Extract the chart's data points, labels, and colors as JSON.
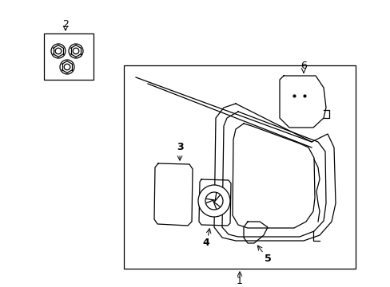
{
  "background_color": "#ffffff",
  "line_color": "#000000",
  "fig_width": 4.89,
  "fig_height": 3.6,
  "dpi": 100,
  "font_size": 9,
  "lw": 0.9
}
